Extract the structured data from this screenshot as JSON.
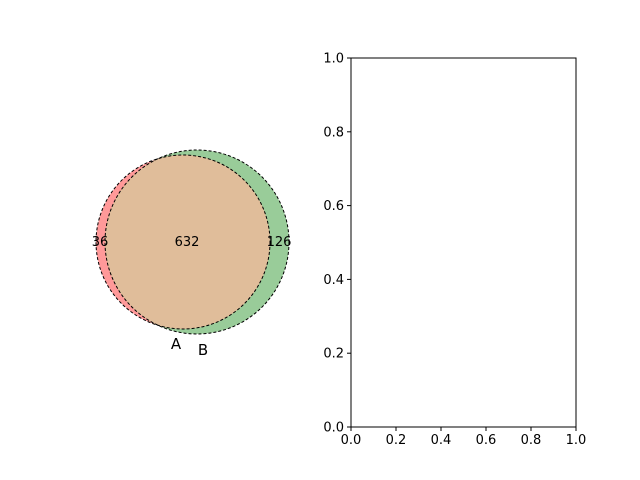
{
  "chart_data": [
    {
      "type": "venn",
      "sets": [
        {
          "label": "A",
          "color": "#ff0000"
        },
        {
          "label": "B",
          "color": "#008000"
        }
      ],
      "regions": [
        {
          "sets": [
            "A"
          ],
          "value": "36"
        },
        {
          "sets": [
            "A",
            "B"
          ],
          "value": "632"
        },
        {
          "sets": [
            "B"
          ],
          "value": "126"
        }
      ],
      "overlap_color": "#e0bd9a"
    },
    {
      "type": "scatter",
      "series": [],
      "xlim": [
        0.0,
        1.0
      ],
      "ylim": [
        0.0,
        1.0
      ],
      "xticks": [
        "0.0",
        "0.2",
        "0.4",
        "0.6",
        "0.8",
        "1.0"
      ],
      "yticks": [
        "0.0",
        "0.2",
        "0.4",
        "0.6",
        "0.8",
        "1.0"
      ],
      "grid": false
    }
  ]
}
